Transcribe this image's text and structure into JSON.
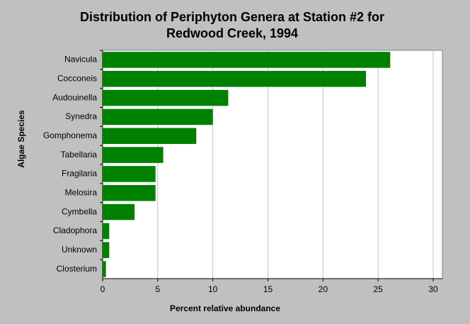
{
  "chart_data": {
    "type": "hbar",
    "title": [
      "Distribution of Periphyton Genera at Station #2 for",
      "Redwood Creek, 1994"
    ],
    "x_label": "Percent relative abundance",
    "y_label": "Algae Species",
    "categories": [
      "Navicula",
      "Cocconeis",
      "Audouinella",
      "Synedra",
      "Gomphonema",
      "Tabellaria",
      "Fragilaria",
      "Melosira",
      "Cymbella",
      "Cladophora",
      "Unknown",
      "Closterium"
    ],
    "values": [
      26.1,
      23.9,
      11.4,
      10.0,
      8.5,
      5.5,
      4.8,
      4.8,
      2.9,
      0.6,
      0.6,
      0.3
    ],
    "color": "#008000",
    "xlim": [
      0,
      30
    ],
    "xticks": [
      0,
      5,
      10,
      15,
      20,
      25,
      30
    ],
    "grid": true
  }
}
